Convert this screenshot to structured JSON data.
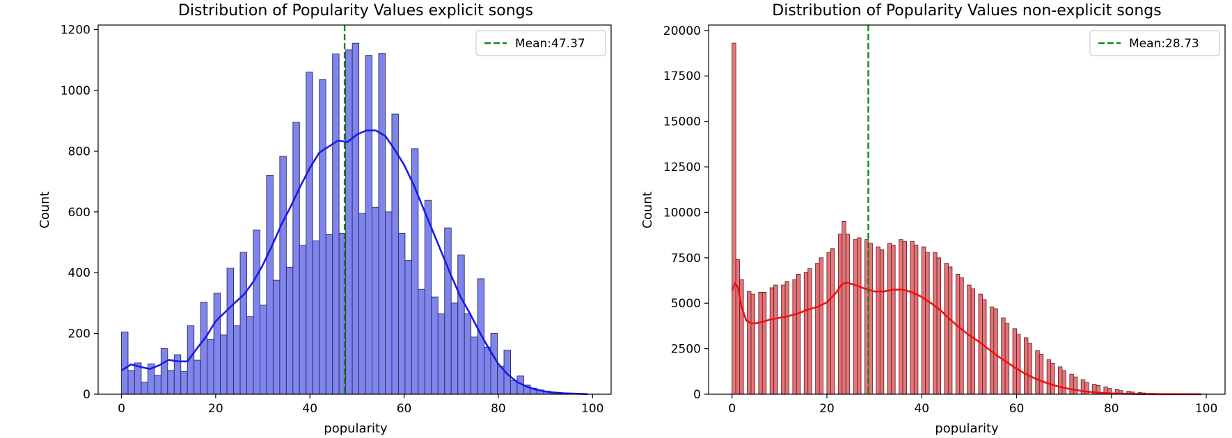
{
  "chart_data": [
    {
      "type": "bar",
      "title": "Distribution of Popularity Values explicit songs",
      "xlabel": "popularity",
      "ylabel": "Count",
      "xlim": [
        -4.95,
        103.95
      ],
      "ylim": [
        0,
        1215
      ],
      "xticks": [
        0,
        20,
        40,
        60,
        80,
        100
      ],
      "yticks": [
        0,
        200,
        400,
        600,
        800,
        1000,
        1200
      ],
      "bin_width": 1.4,
      "bin_starts": [
        0,
        1.4,
        2.8,
        4.2,
        5.6,
        7.0,
        8.4,
        9.8,
        11.2,
        12.6,
        14.0,
        15.4,
        16.8,
        18.2,
        19.6,
        21.0,
        22.4,
        23.8,
        25.2,
        26.6,
        28.0,
        29.4,
        30.8,
        32.2,
        33.6,
        35.0,
        36.4,
        37.8,
        39.2,
        40.6,
        42.0,
        43.4,
        44.8,
        46.2,
        47.6,
        49.0,
        50.4,
        51.8,
        53.2,
        54.6,
        56.0,
        57.4,
        58.8,
        60.2,
        61.6,
        63.0,
        64.4,
        65.8,
        67.2,
        68.6,
        70.0,
        71.4,
        72.8,
        74.2,
        75.6,
        77.0,
        78.4,
        79.8,
        81.2,
        82.6,
        84.0,
        85.4,
        86.8,
        88.2,
        89.6,
        91.0,
        92.4,
        93.8,
        95.2,
        96.6
      ],
      "values": [
        205,
        78,
        103,
        40,
        100,
        62,
        150,
        78,
        130,
        75,
        225,
        112,
        303,
        180,
        333,
        195,
        415,
        225,
        467,
        255,
        540,
        293,
        720,
        375,
        783,
        418,
        895,
        490,
        1060,
        505,
        1035,
        525,
        1120,
        530,
        1133,
        1155,
        595,
        1115,
        615,
        1122,
        600,
        922,
        530,
        440,
        808,
        345,
        638,
        320,
        265,
        547,
        300,
        458,
        265,
        188,
        380,
        155,
        200,
        92,
        145,
        45,
        60,
        30,
        20,
        14,
        10,
        7,
        4,
        3,
        2,
        1
      ],
      "kde": {
        "x": [
          0,
          2,
          4,
          6,
          8,
          10,
          12,
          14,
          16,
          18,
          20,
          22,
          24,
          26,
          28,
          30,
          32,
          34,
          36,
          38,
          40,
          42,
          44,
          46,
          48,
          50,
          52,
          54,
          56,
          58,
          60,
          62,
          64,
          66,
          68,
          70,
          72,
          74,
          76,
          78,
          80,
          82,
          84,
          86,
          88,
          90,
          92,
          94,
          96,
          98,
          99
        ],
        "y": [
          78,
          98,
          90,
          83,
          95,
          113,
          108,
          108,
          150,
          190,
          240,
          270,
          300,
          328,
          370,
          425,
          490,
          560,
          620,
          685,
          745,
          795,
          815,
          835,
          830,
          855,
          868,
          868,
          850,
          805,
          755,
          690,
          615,
          540,
          465,
          390,
          320,
          265,
          205,
          150,
          100,
          65,
          40,
          25,
          15,
          9,
          5,
          3,
          2,
          1,
          0
        ]
      },
      "bar_color": "#8085ee",
      "edge_color": "#2a2a55",
      "kde_color": "#1a1ae6",
      "mean": 47.37,
      "mean_color": "#118811",
      "legend": {
        "label": "Mean:47.37",
        "position": "upper-right"
      },
      "grid": false
    },
    {
      "type": "bar",
      "title": "Distribution of Popularity Values non-explicit songs",
      "xlabel": "popularity",
      "ylabel": "Count",
      "xlim": [
        -4.95,
        103.95
      ],
      "ylim": [
        0,
        20300
      ],
      "xticks": [
        0,
        20,
        40,
        60,
        80,
        100
      ],
      "yticks": [
        0,
        2500,
        5000,
        7500,
        10000,
        12500,
        15000,
        17500,
        20000
      ],
      "bin_width": 0.8,
      "bin_starts": [
        0,
        0.8,
        1.6,
        2.4,
        3.2,
        4.0,
        4.8,
        5.6,
        6.4,
        7.2,
        8.0,
        8.8,
        9.6,
        10.4,
        11.2,
        12.0,
        12.8,
        13.6,
        14.4,
        15.2,
        16.0,
        16.8,
        17.6,
        18.4,
        19.2,
        20.0,
        20.8,
        21.6,
        22.4,
        23.2,
        24.0,
        24.8,
        25.6,
        26.4,
        27.2,
        28.0,
        28.8,
        29.6,
        30.4,
        31.2,
        32.0,
        32.8,
        33.6,
        34.4,
        35.2,
        36.0,
        36.8,
        37.6,
        38.4,
        39.2,
        40.0,
        40.8,
        41.6,
        42.4,
        43.2,
        44.0,
        44.8,
        45.6,
        46.4,
        47.2,
        48.0,
        48.8,
        49.6,
        50.4,
        51.2,
        52.0,
        52.8,
        53.6,
        54.4,
        55.2,
        56.0,
        56.8,
        57.6,
        58.4,
        59.2,
        60.0,
        60.8,
        61.6,
        62.4,
        63.2,
        64.0,
        64.8,
        65.6,
        66.4,
        67.2,
        68.0,
        68.8,
        69.6,
        70.4,
        71.2,
        72.0,
        72.8,
        73.6,
        74.4,
        75.2,
        76.0,
        76.8,
        77.6,
        78.4,
        79.2,
        80.0,
        80.8,
        81.6,
        82.4,
        83.2,
        84.0,
        84.8,
        85.6,
        86.4,
        87.2,
        88.0,
        88.8,
        89.6,
        90.4,
        91.2,
        92.0,
        92.8,
        93.6,
        94.4,
        95.2,
        96.0,
        96.8,
        97.6,
        98.4
      ],
      "values": [
        19300,
        7400,
        6300,
        0,
        5650,
        5500,
        0,
        5600,
        5600,
        0,
        5850,
        6000,
        0,
        6000,
        6200,
        0,
        6300,
        6600,
        0,
        6700,
        6900,
        0,
        7200,
        7500,
        0,
        7800,
        8000,
        0,
        8800,
        9500,
        8800,
        0,
        8500,
        8600,
        0,
        8500,
        8300,
        0,
        8100,
        7950,
        0,
        8300,
        8200,
        0,
        8500,
        8400,
        0,
        8400,
        8200,
        0,
        8100,
        7800,
        0,
        7800,
        7500,
        0,
        7200,
        7000,
        0,
        6600,
        6400,
        0,
        6000,
        5800,
        0,
        5500,
        5200,
        0,
        4800,
        4700,
        0,
        4200,
        3900,
        0,
        3600,
        3300,
        0,
        3100,
        2800,
        0,
        2400,
        2200,
        0,
        1900,
        1700,
        0,
        1500,
        1300,
        0,
        1100,
        950,
        0,
        800,
        650,
        0,
        550,
        480,
        0,
        400,
        320,
        0,
        260,
        200,
        0,
        160,
        120,
        0,
        90,
        70,
        0,
        50,
        35,
        0,
        25,
        20,
        0,
        12,
        8,
        0,
        5,
        3,
        0,
        2,
        1
      ],
      "kde": {
        "x": [
          0,
          0.6,
          1.2,
          2,
          3,
          4,
          5,
          6,
          8,
          10,
          12,
          14,
          16,
          18,
          20,
          22,
          23,
          24,
          26,
          28,
          30,
          32,
          34,
          36,
          38,
          40,
          42,
          44,
          46,
          48,
          50,
          52,
          54,
          56,
          58,
          60,
          62,
          64,
          66,
          68,
          70,
          72,
          74,
          76,
          78,
          80,
          82,
          84,
          86,
          88,
          90,
          92,
          94,
          96,
          98,
          99
        ],
        "y": [
          5700,
          6100,
          5900,
          4800,
          4050,
          3900,
          3900,
          3950,
          4100,
          4200,
          4300,
          4450,
          4650,
          4800,
          5050,
          5600,
          6000,
          6150,
          6000,
          5800,
          5650,
          5650,
          5750,
          5750,
          5600,
          5350,
          5000,
          4600,
          4100,
          3650,
          3250,
          2900,
          2500,
          2100,
          1750,
          1400,
          1100,
          850,
          650,
          480,
          350,
          250,
          170,
          110,
          70,
          45,
          30,
          20,
          12,
          7,
          4,
          2,
          1,
          0,
          0,
          0
        ]
      },
      "bar_color": "#e8747a",
      "edge_color": "#5a2a2a",
      "kde_color": "#ee1111",
      "mean": 28.73,
      "mean_color": "#118811",
      "legend": {
        "label": "Mean:28.73",
        "position": "upper-right"
      },
      "grid": false
    }
  ]
}
